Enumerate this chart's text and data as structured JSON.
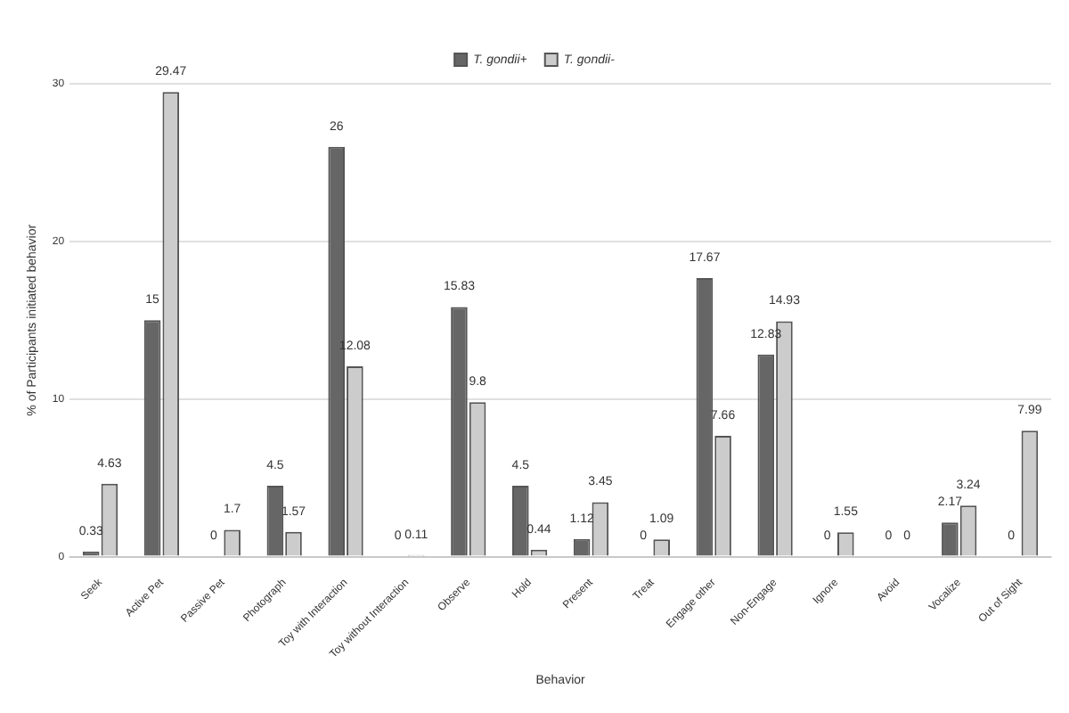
{
  "chart_data": {
    "type": "bar",
    "xlabel": "Behavior",
    "ylabel": "% of Participants initiated behavior",
    "categories": [
      "Seek",
      "Active Pet",
      "Passive Pet",
      "Photograph",
      "Toy with Interaction",
      "Toy without Interaction",
      "Observe",
      "Hold",
      "Present",
      "Treat",
      "Engage other",
      "Non-Engage",
      "Ignore",
      "Avoid",
      "Vocalize",
      "Out of Sight"
    ],
    "series": [
      {
        "name": "T. gondii+",
        "color": "#666666",
        "values": [
          0.33,
          15,
          0,
          4.5,
          26,
          0,
          15.83,
          4.5,
          1.12,
          0,
          17.67,
          12.83,
          0,
          0,
          2.17,
          0
        ]
      },
      {
        "name": "T. gondii-",
        "color": "#cccccc",
        "values": [
          4.63,
          29.47,
          1.7,
          1.57,
          12.08,
          0.11,
          9.8,
          0.44,
          3.45,
          1.09,
          7.66,
          14.93,
          1.55,
          0,
          3.24,
          7.99
        ]
      }
    ],
    "ylim": [
      0,
      30
    ],
    "yticks": [
      0,
      10,
      20,
      30
    ],
    "grid": "y",
    "legend": "top",
    "data_labels": true
  }
}
